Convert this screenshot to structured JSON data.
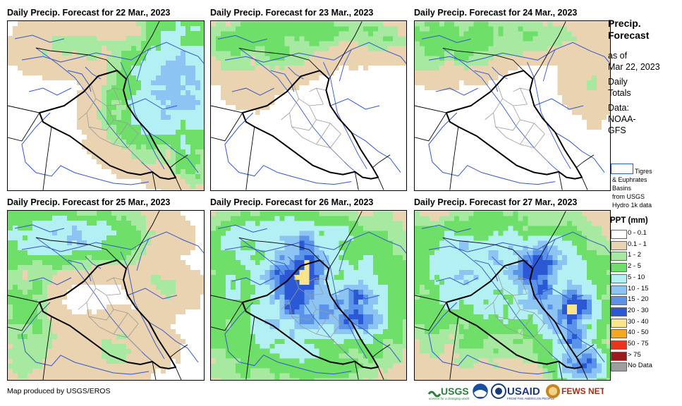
{
  "panels": [
    {
      "title": "Daily Precip. Forecast for 22 Mar., 2023",
      "day": 0
    },
    {
      "title": "Daily Precip. Forecast for 23 Mar., 2023",
      "day": 1
    },
    {
      "title": "Daily Precip. Forecast for 24 Mar., 2023",
      "day": 2
    },
    {
      "title": "Daily Precip. Forecast for 25 Mar., 2023",
      "day": 3
    },
    {
      "title": "Daily Precip. Forecast for 26 Mar., 2023",
      "day": 4
    },
    {
      "title": "Daily Precip. Forecast for 27 Mar., 2023",
      "day": 5
    }
  ],
  "legend": {
    "title_line1": "Precip.",
    "title_line2": "Forecast",
    "asof_line1": "as of",
    "asof_line2": "Mar 22, 2023",
    "totals_line1": "Daily",
    "totals_line2": "Totals",
    "data_line1": "Data:",
    "data_line2": "NOAA-",
    "data_line3": "GFS",
    "basin_line1": "Tigres",
    "basin_line2": "& Euphrates",
    "basin_line3": "Basins",
    "basin_line4": "from USGS",
    "basin_line5": "Hydro 1k data",
    "ppt_title": "PPT (mm)",
    "ppt_classes": [
      {
        "label": "0 - 0.1",
        "color": "#ffffff"
      },
      {
        "label": "0.1 - 1",
        "color": "#ead3b1"
      },
      {
        "label": "1 - 2",
        "color": "#a8e9a2"
      },
      {
        "label": "2 - 5",
        "color": "#6ee06a"
      },
      {
        "label": "5 - 10",
        "color": "#b2f0f4"
      },
      {
        "label": "10 - 15",
        "color": "#8cc4f4"
      },
      {
        "label": "15 - 20",
        "color": "#5a93ea"
      },
      {
        "label": "20 - 30",
        "color": "#2b58d4"
      },
      {
        "label": "30 - 40",
        "color": "#fbe58a"
      },
      {
        "label": "40 - 50",
        "color": "#f5a623"
      },
      {
        "label": "50 - 75",
        "color": "#e8341c"
      },
      {
        "label": "> 75",
        "color": "#9c1a1a"
      },
      {
        "label": "No Data",
        "color": "#9e9e9e"
      }
    ]
  },
  "credit": "Map produced by USGS/EROS",
  "logos": {
    "usgs": "USGS",
    "usgs_tagline": "science for a changing world",
    "usaid": "USAID",
    "usaid_tagline": "FROM THE AMERICAN PEOPLE",
    "fewsnet": "FEWS NET"
  }
}
